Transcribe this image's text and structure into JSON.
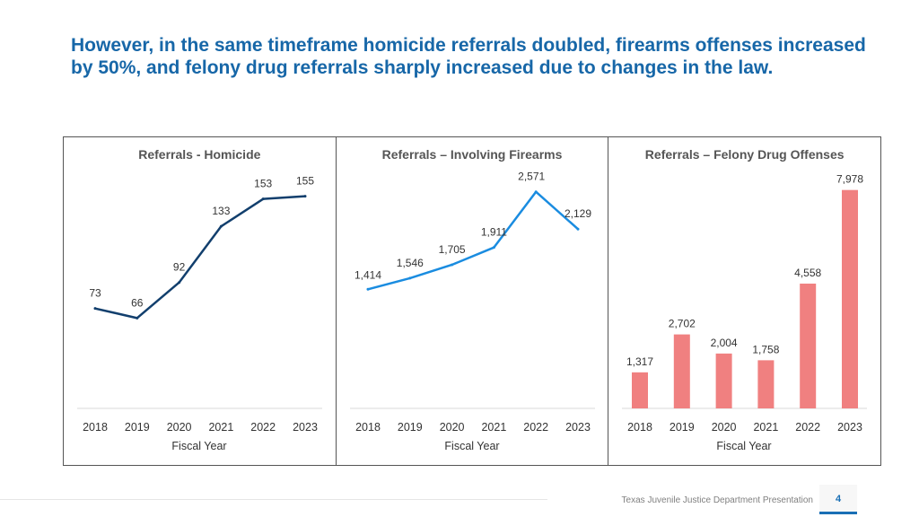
{
  "slide": {
    "title": "However, in the same timeframe homicide referrals doubled, firearms offenses increased by 50%, and felony drug referrals sharply increased due to changes in the law.",
    "footer": "Texas Juvenile Justice Department Presentation",
    "page_number": "4"
  },
  "colors": {
    "homicide_line": "#123f6d",
    "firearms_line": "#1a8ce0",
    "drug_bars": "#f08080"
  },
  "chart_data": [
    {
      "type": "line",
      "title": "Referrals - Homicide",
      "xlabel": "Fiscal Year",
      "ylabel": "",
      "categories": [
        "2018",
        "2019",
        "2020",
        "2021",
        "2022",
        "2023"
      ],
      "values": [
        73,
        66,
        92,
        133,
        153,
        155
      ],
      "labels": [
        "73",
        "66",
        "92",
        "133",
        "153",
        "155"
      ],
      "ylim": [
        0,
        160
      ],
      "color_key": "homicide_line"
    },
    {
      "type": "line",
      "title": "Referrals – Involving Firearms",
      "xlabel": "Fiscal Year",
      "ylabel": "",
      "categories": [
        "2018",
        "2019",
        "2020",
        "2021",
        "2022",
        "2023"
      ],
      "values": [
        1414,
        1546,
        1705,
        1911,
        2571,
        2129
      ],
      "labels": [
        "1,414",
        "1,546",
        "1,705",
        "1,911",
        "2,571",
        "2,129"
      ],
      "ylim": [
        0,
        2600
      ],
      "color_key": "firearms_line"
    },
    {
      "type": "bar",
      "title": "Referrals – Felony Drug Offenses",
      "xlabel": "Fiscal Year",
      "ylabel": "",
      "categories": [
        "2018",
        "2019",
        "2020",
        "2021",
        "2022",
        "2023"
      ],
      "values": [
        1317,
        2702,
        2004,
        1758,
        4558,
        7978
      ],
      "labels": [
        "1,317",
        "2,702",
        "2,004",
        "1,758",
        "4,558",
        "7,978"
      ],
      "ylim": [
        0,
        8000
      ],
      "color_key": "drug_bars"
    }
  ]
}
